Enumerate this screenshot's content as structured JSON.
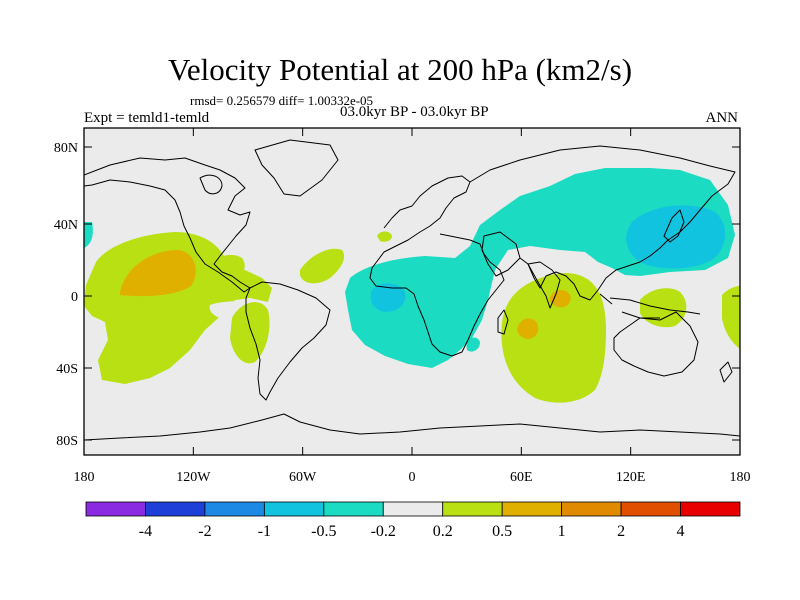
{
  "header": {
    "title": "Velocity Potential at 200 hPa (km2/s)",
    "stats": "rmsd= 0.256579 diff= 1.00332e-05",
    "experiment": "Expt = temld1-temld",
    "period": "03.0kyr BP - 03.0kyr BP",
    "season": "ANN"
  },
  "map": {
    "ocean_color": "#ebebeb",
    "coast_color": "#000000",
    "lat_ticks": [
      "80N",
      "40N",
      "0",
      "40S",
      "80S"
    ],
    "lon_ticks": [
      "180",
      "120W",
      "60W",
      "0",
      "60E",
      "120E",
      "180"
    ]
  },
  "colorbar": {
    "colors": [
      "#8a2be2",
      "#1e3fd8",
      "#1e88e5",
      "#12c3e0",
      "#1bdcc2",
      "#ebebeb",
      "#b9e012",
      "#e0b000",
      "#e08a00",
      "#e04e00",
      "#e80000"
    ],
    "labels": [
      "-4",
      "-2",
      "-1",
      "-0.5",
      "-0.2",
      "0.2",
      "0.5",
      "1",
      "2",
      "4"
    ]
  }
}
